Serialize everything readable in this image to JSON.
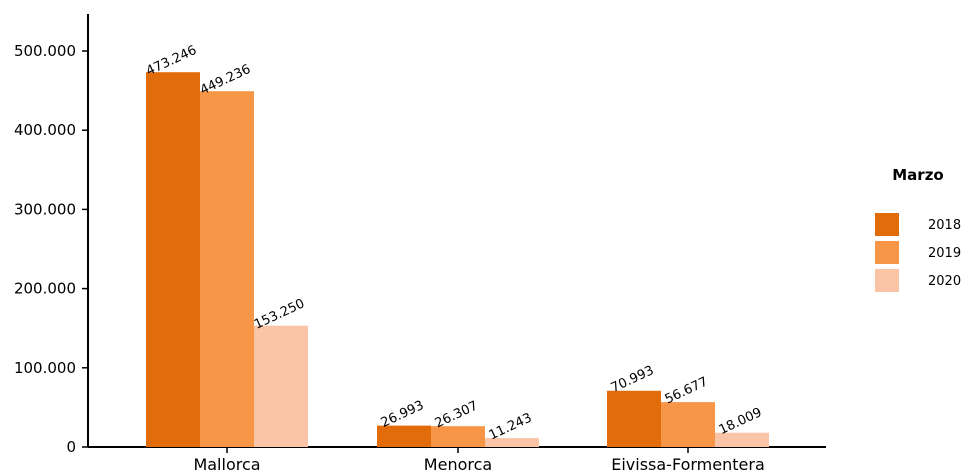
{
  "chart_data": {
    "type": "bar",
    "categories": [
      "Mallorca",
      "Menorca",
      "Eivissa-Formentera"
    ],
    "series": [
      {
        "name": "2018",
        "values": [
          473246,
          26993,
          70993
        ],
        "labels": [
          "473.246",
          "26.993",
          "70.993"
        ],
        "color": "#e36c0a"
      },
      {
        "name": "2019",
        "values": [
          449236,
          26307,
          56677
        ],
        "labels": [
          "449.236",
          "26.307",
          "56.677"
        ],
        "color": "#f79646"
      },
      {
        "name": "2020",
        "values": [
          153250,
          11243,
          18009
        ],
        "labels": [
          "153.250",
          "11.243",
          "18.009"
        ],
        "color": "#fac4a7"
      }
    ],
    "yticks": [
      0,
      100000,
      200000,
      300000,
      400000,
      500000
    ],
    "ytick_labels": [
      "0",
      "100.000",
      "200.000",
      "300.000",
      "400.000",
      "500.000"
    ],
    "ylim": [
      0,
      550000
    ],
    "legend": {
      "title": "Marzo",
      "position": "right"
    },
    "grid": false
  }
}
